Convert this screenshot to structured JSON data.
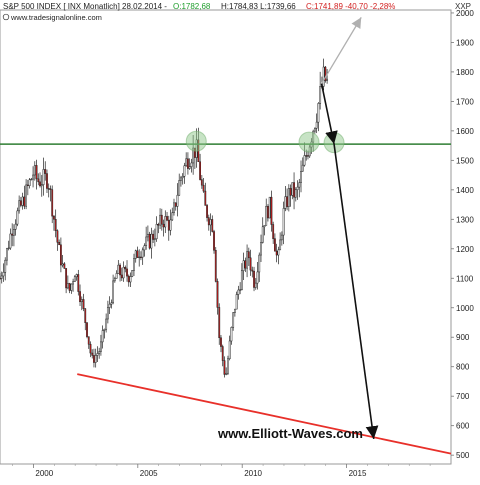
{
  "header": {
    "name": "S&P 500 INDEX [ INX Monatlich] 28.02.2014 -",
    "open_label": "O:1782,68",
    "high_low_label": "H:1784,83 L:1739,66",
    "close_label": "C:1741,89 -40,70 -2,28%",
    "source": "www.tradesignalonline.com",
    "symbol": "XXP"
  },
  "watermark": "www.Elliott-Waves.com",
  "chart_data": {
    "type": "candlestick",
    "title": "S&P 500 INDEX [ INX Monatlich] 28.02.2014",
    "ylim": [
      470,
      2010
    ],
    "xlim": [
      1998.4,
      2020.0
    ],
    "y_ticks": [
      500,
      600,
      700,
      800,
      900,
      1000,
      1100,
      1200,
      1300,
      1400,
      1500,
      1600,
      1700,
      1800,
      1900,
      2000
    ],
    "x_ticks": [
      2000,
      2005,
      2010,
      2015
    ],
    "grid": false,
    "monthly_close_anchors": {
      "x": [
        1998.4,
        1998.7,
        1999.0,
        1999.5,
        2000.0,
        2000.2,
        2000.7,
        2001.2,
        2001.7,
        2002.0,
        2002.5,
        2002.8,
        2003.2,
        2003.6,
        2004.0,
        2004.6,
        2005.0,
        2005.6,
        2006.2,
        2006.6,
        2007.0,
        2007.4,
        2007.8,
        2008.2,
        2008.6,
        2008.9,
        2009.2,
        2009.6,
        2010.0,
        2010.3,
        2010.6,
        2011.0,
        2011.3,
        2011.7,
        2012.0,
        2012.3,
        2012.6,
        2013.0,
        2013.5,
        2013.9,
        2014.1
      ],
      "close": [
        1100,
        1180,
        1280,
        1360,
        1460,
        1430,
        1440,
        1200,
        1050,
        1130,
        950,
        820,
        860,
        1000,
        1120,
        1110,
        1190,
        1230,
        1300,
        1280,
        1430,
        1510,
        1540,
        1340,
        1280,
        900,
        760,
        990,
        1120,
        1180,
        1080,
        1290,
        1350,
        1150,
        1330,
        1400,
        1380,
        1500,
        1640,
        1780,
        1760
      ]
    },
    "support_line": {
      "x": [
        2002.1,
        2020.0
      ],
      "y": [
        775,
        505
      ],
      "color": "#e8302a"
    },
    "resistance_line": {
      "y": 1555,
      "color": "#2e7d32"
    },
    "highlighted_touches": [
      {
        "x": 2007.8,
        "y": 1565
      },
      {
        "x": 2013.2,
        "y": 1562
      },
      {
        "x": 2014.4,
        "y": 1560
      }
    ],
    "projection_bull": {
      "from": [
        2013.8,
        1760
      ],
      "to": [
        2015.7,
        1985
      ],
      "color": "#b0b0b0"
    },
    "projection_bear": [
      {
        "x": 2013.8,
        "y": 1760
      },
      {
        "x": 2014.4,
        "y": 1555
      },
      {
        "x": 2016.3,
        "y": 555
      }
    ],
    "colors": {
      "up": "#ffffff",
      "down": "#c41c1c",
      "edge": "#222222"
    }
  }
}
